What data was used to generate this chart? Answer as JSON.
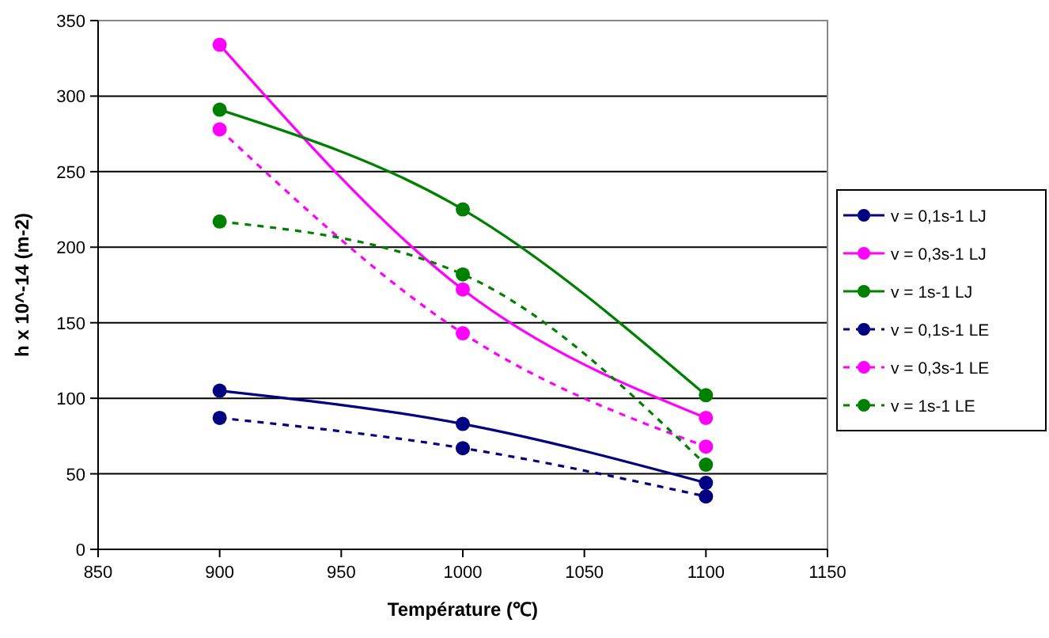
{
  "chart_data": {
    "type": "line",
    "xlabel": "Température (℃)",
    "ylabel": "h x 10^-14 (m-2)",
    "x": [
      900,
      1000,
      1100
    ],
    "xlim": [
      850,
      1150
    ],
    "xticks": [
      850,
      900,
      950,
      1000,
      1050,
      1100,
      1150
    ],
    "ylim": [
      0,
      350
    ],
    "yticks": [
      0,
      50,
      100,
      150,
      200,
      250,
      300,
      350
    ],
    "grid": "y",
    "legend": "right",
    "marker": "circle",
    "series": [
      {
        "name": "v = 0,1s-1 LJ",
        "color": "#000080",
        "values": [
          105,
          83,
          44
        ],
        "line_style": "solid"
      },
      {
        "name": "v = 0,3s-1 LJ",
        "color": "#ff00ff",
        "values": [
          334,
          172,
          87
        ],
        "line_style": "solid"
      },
      {
        "name": "v = 1s-1 LJ",
        "color": "#008000",
        "values": [
          291,
          225,
          102
        ],
        "line_style": "solid"
      },
      {
        "name": "v = 0,1s-1 LE",
        "color": "#000080",
        "values": [
          87,
          67,
          35
        ],
        "line_style": "dashed"
      },
      {
        "name": "v = 0,3s-1 LE",
        "color": "#ff00ff",
        "values": [
          278,
          143,
          68
        ],
        "line_style": "dashed"
      },
      {
        "name": "v = 1s-1 LE",
        "color": "#008000",
        "values": [
          217,
          182,
          56
        ],
        "line_style": "dashed"
      }
    ]
  }
}
